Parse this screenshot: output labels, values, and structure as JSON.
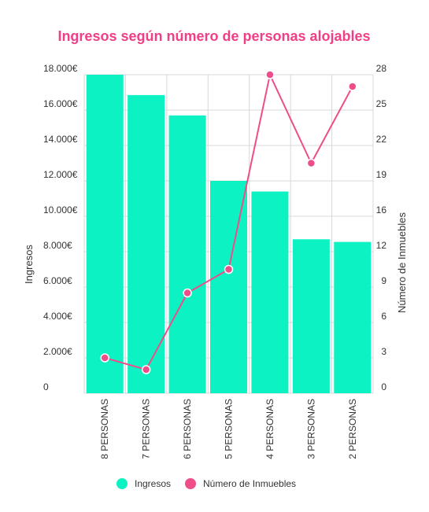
{
  "chart_data": {
    "type": "bar",
    "title": "Ingresos según número de personas alojables",
    "categories": [
      "8 PERSONAS",
      "7 PERSONAS",
      "6 PERSONAS",
      "5 PERSONAS",
      "4 PERSONAS",
      "3 PERSONAS",
      "2 PERSONAS"
    ],
    "series": [
      {
        "name": "Ingresos",
        "type": "bar",
        "axis": "left",
        "values": [
          18000,
          16850,
          15700,
          12000,
          11400,
          8700,
          8550
        ]
      },
      {
        "name": "Número de Inmuebles",
        "type": "line",
        "axis": "right",
        "values": [
          3,
          2,
          8.5,
          10.5,
          27,
          19.5,
          26
        ]
      }
    ],
    "y_left": {
      "label": "Ingresos",
      "range": [
        0,
        18000
      ],
      "ticks": [
        0,
        2000,
        4000,
        6000,
        8000,
        10000,
        12000,
        14000,
        16000,
        18000
      ],
      "tick_labels": [
        "0",
        "2.000€",
        "4.000€",
        "6.000€",
        "8.000€",
        "10.000€",
        "12.000€",
        "14.000€",
        "16.000€",
        "18.000€"
      ]
    },
    "y_right": {
      "label": "Número de Inmuebles",
      "range": [
        0,
        27
      ],
      "ticks": [
        0,
        3,
        6,
        9,
        12,
        16,
        19,
        22,
        25,
        28
      ],
      "tick_labels": [
        "0",
        "3",
        "6",
        "9",
        "12",
        "16",
        "19",
        "22",
        "25",
        "28"
      ]
    },
    "grid": true,
    "legend": {
      "placement": "bottom",
      "items": [
        "Ingresos",
        "Número de Inmuebles"
      ]
    },
    "colors": {
      "bars": "#0df2c2",
      "line": "#ee4d8a",
      "title": "#f03f86",
      "grid": "#d8d8d8"
    }
  }
}
